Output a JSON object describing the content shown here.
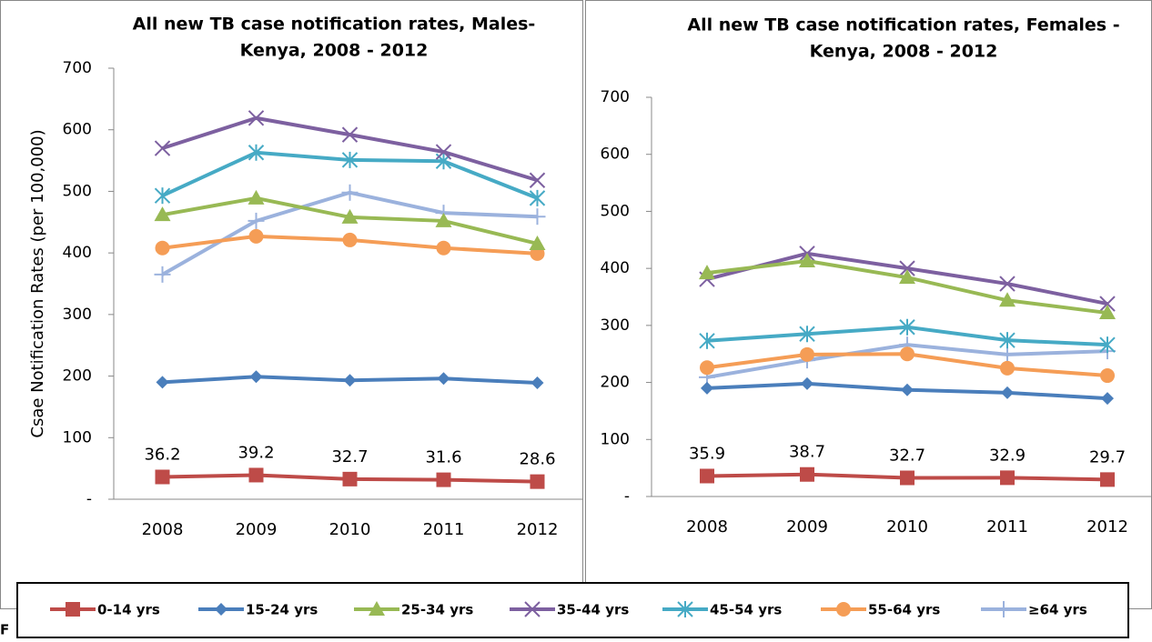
{
  "chart_data": [
    {
      "type": "line",
      "title": [
        "All new TB case notification rates, Males-",
        "Kenya, 2008 - 2012"
      ],
      "y_label": "Csae Notification Rates (per 100,000)",
      "categories": [
        "2008",
        "2009",
        "2010",
        "2011",
        "2012"
      ],
      "ylim": [
        0,
        700
      ],
      "yticks": [
        {
          "value": 0,
          "label": "-"
        },
        100,
        200,
        300,
        400,
        500,
        600,
        700
      ],
      "grid": false,
      "series": [
        {
          "name": "0-14 yrs",
          "color": "#be4b48",
          "marker": "square",
          "data_labels": true,
          "values": [
            36.2,
            39.2,
            32.7,
            31.6,
            28.6
          ]
        },
        {
          "name": "15-24 yrs",
          "color": "#4a7ebb",
          "marker": "diamond",
          "values": [
            190,
            199,
            193,
            196,
            189
          ]
        },
        {
          "name": "25-34 yrs",
          "color": "#98b954",
          "marker": "triangle",
          "values": [
            462,
            489,
            458,
            452,
            415
          ]
        },
        {
          "name": "35-44 yrs",
          "color": "#7d60a0",
          "marker": "x",
          "values": [
            570,
            619,
            592,
            564,
            518
          ]
        },
        {
          "name": "45-54 yrs",
          "color": "#46aac5",
          "marker": "star",
          "values": [
            493,
            563,
            551,
            549,
            489
          ]
        },
        {
          "name": "55-64 yrs",
          "color": "#f59d56",
          "marker": "circle",
          "values": [
            408,
            427,
            421,
            408,
            399
          ]
        },
        {
          "name": "≥64 yrs",
          "color": "#9bb2dd",
          "marker": "plus",
          "values": [
            365,
            452,
            498,
            465,
            459
          ]
        }
      ]
    },
    {
      "type": "line",
      "title": [
        "All new TB case notification rates, Females -",
        "Kenya, 2008 - 2012"
      ],
      "categories": [
        "2008",
        "2009",
        "2010",
        "2011",
        "2012"
      ],
      "ylim": [
        0,
        700
      ],
      "yticks": [
        {
          "value": 0,
          "label": "-"
        },
        100,
        200,
        300,
        400,
        500,
        600,
        700
      ],
      "grid": false,
      "series": [
        {
          "name": "0-14 yrs",
          "color": "#be4b48",
          "marker": "square",
          "data_labels": true,
          "values": [
            35.9,
            38.7,
            32.7,
            32.9,
            29.7
          ]
        },
        {
          "name": "15-24 yrs",
          "color": "#4a7ebb",
          "marker": "diamond",
          "values": [
            190,
            198,
            187,
            182,
            172
          ]
        },
        {
          "name": "25-34 yrs",
          "color": "#98b954",
          "marker": "triangle",
          "values": [
            392,
            413,
            384,
            344,
            322
          ]
        },
        {
          "name": "35-44 yrs",
          "color": "#7d60a0",
          "marker": "x",
          "values": [
            381,
            426,
            400,
            373,
            338
          ]
        },
        {
          "name": "45-54 yrs",
          "color": "#46aac5",
          "marker": "star",
          "values": [
            273,
            285,
            297,
            274,
            266
          ]
        },
        {
          "name": "55-64 yrs",
          "color": "#f59d56",
          "marker": "circle",
          "values": [
            226,
            249,
            250,
            225,
            212
          ]
        },
        {
          "name": "≥64 yrs",
          "color": "#9bb2dd",
          "marker": "plus",
          "values": [
            209,
            239,
            266,
            249,
            255
          ]
        }
      ]
    }
  ],
  "caption": "F"
}
